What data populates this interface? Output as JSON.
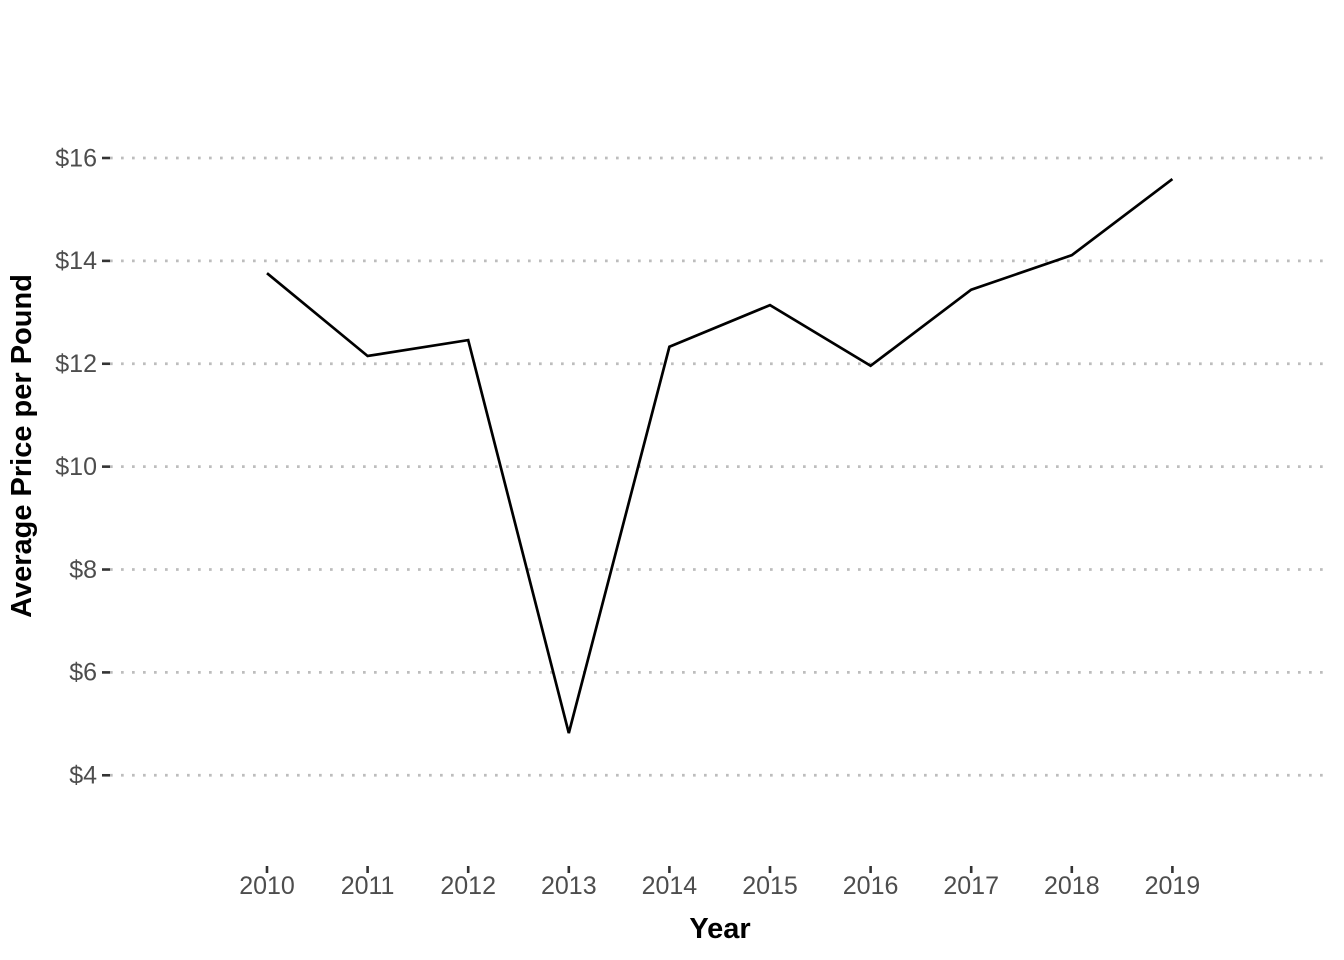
{
  "chart_data": {
    "type": "line",
    "title": "",
    "xlabel": "Year",
    "ylabel": "Average Price per Pound",
    "x": [
      2010,
      2011,
      2012,
      2013,
      2014,
      2015,
      2016,
      2017,
      2018,
      2019
    ],
    "series": [
      {
        "name": "average-price-per-pound",
        "values": [
          13.76,
          12.15,
          12.46,
          4.82,
          12.33,
          13.14,
          11.96,
          13.44,
          14.11,
          15.59
        ]
      }
    ],
    "x_tick_labels": [
      "2010",
      "2011",
      "2012",
      "2013",
      "2014",
      "2015",
      "2016",
      "2017",
      "2018",
      "2019"
    ],
    "y_tick_labels": [
      "$4",
      "$6",
      "$8",
      "$10",
      "$12",
      "$14",
      "$16"
    ],
    "y_tick_values": [
      4,
      6,
      8,
      10,
      12,
      14,
      16
    ],
    "ylim_gridlines": [
      4,
      16
    ],
    "grid": "major horizontal dotted lines only, no vertical gridlines, no panel border",
    "legend": "none",
    "colors": {
      "line": "#000000",
      "gridline": "#bdbdbd",
      "tick_mark": "#333333",
      "tick_label": "#4d4d4d",
      "axis_title": "#000000",
      "background": "#ffffff"
    }
  }
}
